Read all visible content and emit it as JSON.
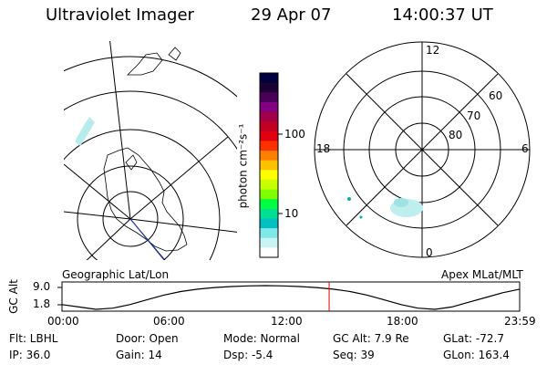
{
  "header": {
    "instrument": "Ultraviolet Imager",
    "date": "29 Apr 07",
    "time": "14:00:37 UT"
  },
  "colorbar": {
    "unit_label": "photon cm⁻²s⁻¹",
    "ticks": [
      "100",
      "10"
    ],
    "colors": [
      "#000040",
      "#1a0033",
      "#4a0057",
      "#80007f",
      "#a0004a",
      "#c00020",
      "#e00010",
      "#ff3000",
      "#ff8000",
      "#ffc000",
      "#ffff00",
      "#c8ff00",
      "#80ff00",
      "#00ff40",
      "#00e090",
      "#00c0c0",
      "#80e8e8",
      "#c8f4f4",
      "#ffffff"
    ]
  },
  "left_panel": {
    "label": "Geographic Lat/Lon"
  },
  "right_panel": {
    "label": "Apex MLat/MLT",
    "hour_labels": {
      "top": "12",
      "left": "18",
      "right": "6",
      "bottom": "0"
    },
    "lat_labels": [
      "60",
      "70",
      "80"
    ]
  },
  "timeline": {
    "axis_label": "GC Alt",
    "y_ticks": [
      "9.0",
      "1.8"
    ],
    "x_ticks": [
      "00:00",
      "06:00",
      "12:00",
      "18:00",
      "23:59"
    ],
    "orbit_alt_norm": [
      0.2,
      0.1,
      0.0,
      0.05,
      0.2,
      0.4,
      0.6,
      0.75,
      0.85,
      0.92,
      0.96,
      0.99,
      1.0,
      0.99,
      0.96,
      0.92,
      0.85,
      0.75,
      0.6,
      0.4,
      0.2,
      0.05,
      0.0,
      0.1,
      0.3,
      0.5,
      0.7,
      0.85
    ],
    "marker_time_h": 14.01
  },
  "info": {
    "filter": "Flt: LBHL",
    "ip": "IP: 36.0",
    "door": "Door: Open",
    "gain": "Gain: 14",
    "mode": "Mode: Normal",
    "dsp": "Dsp:   -5.4",
    "gcalt": "GC Alt: 7.9 Re",
    "seq": "Seq: 39",
    "glat": "GLat: -72.7",
    "glon": "GLon: 163.4"
  }
}
